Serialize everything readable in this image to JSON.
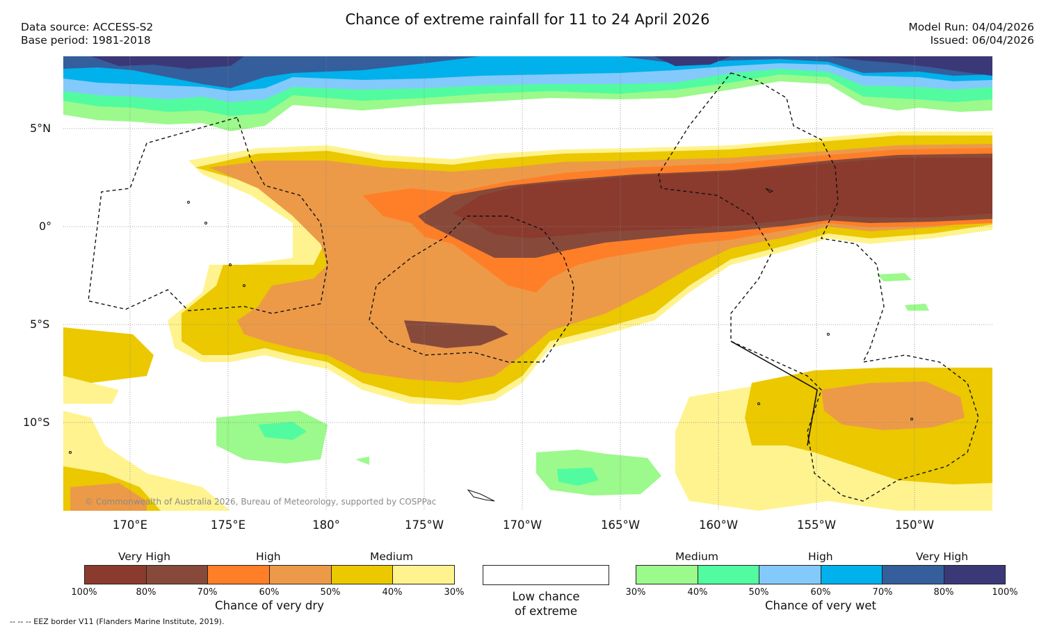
{
  "title": "Chance of extreme rainfall for 11 to 24 April 2026",
  "meta_left": {
    "source": "Data source: ACCESS-S2",
    "base": "Base period: 1981-2018"
  },
  "meta_right": {
    "run": "Model Run: 04/04/2026",
    "issued": "Issued: 06/04/2026"
  },
  "y_axis": [
    "5°N",
    "0°",
    "5°S",
    "10°S"
  ],
  "x_axis": [
    "170°E",
    "175°E",
    "180°",
    "175°W",
    "170°W",
    "165°W",
    "160°W",
    "155°W",
    "150°W"
  ],
  "copyright": "© Commonwealth of Australia 2026, Bureau of Meteorology, supported by COSPPac",
  "legend_dry": {
    "categories": [
      "Very High",
      "High",
      "Medium"
    ],
    "ticks": [
      "100%",
      "80%",
      "70%",
      "60%",
      "50%",
      "40%",
      "30%"
    ],
    "colors": [
      "#8b3a2e",
      "#874a3a",
      "#ff7f28",
      "#ec9a48",
      "#ebc800",
      "#fff38f"
    ],
    "caption": "Chance of very dry"
  },
  "legend_low": {
    "line1": "Low chance",
    "line2": "of extreme"
  },
  "legend_wet": {
    "categories": [
      "Medium",
      "High",
      "Very High"
    ],
    "ticks": [
      "30%",
      "40%",
      "50%",
      "60%",
      "70%",
      "80%",
      "100%"
    ],
    "colors": [
      "#9cf98b",
      "#52fb9f",
      "#84c9fb",
      "#00b1eb",
      "#345e9c",
      "#3a3877"
    ],
    "caption": "Chance of very wet"
  },
  "footnote": "--  --  -- EEZ border V11 (Flanders Marine Institute, 2019)."
}
